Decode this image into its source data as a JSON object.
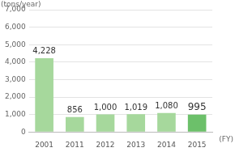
{
  "chart_data": {
    "type": "bar",
    "y_label": "(tons/year)",
    "x_label": "(FY)",
    "categories": [
      "2001",
      "2011",
      "2012",
      "2013",
      "2014",
      "2015"
    ],
    "values": [
      4228,
      856,
      1000,
      1019,
      1080,
      995
    ],
    "value_labels": [
      "4,228",
      "856",
      "1,000",
      "1,019",
      "1,080",
      "995"
    ],
    "colors": [
      "#a6d89c",
      "#a6d89c",
      "#a6d89c",
      "#a6d89c",
      "#a6d89c",
      "#6cc06a"
    ],
    "ylim": [
      0,
      7000
    ],
    "yticks": [
      0,
      {
        "value": 1000,
        "label": "1,000"
      },
      {
        "value": 2000,
        "label": "2,000"
      },
      {
        "value": 3000,
        "label": "3,000"
      },
      {
        "value": 4000,
        "label": "4,000"
      },
      {
        "value": 5000,
        "label": "5,000"
      },
      {
        "value": 6000,
        "label": "6,000"
      },
      {
        "value": 7000,
        "label": "7,000"
      }
    ],
    "grid": true,
    "data_labels": true
  }
}
